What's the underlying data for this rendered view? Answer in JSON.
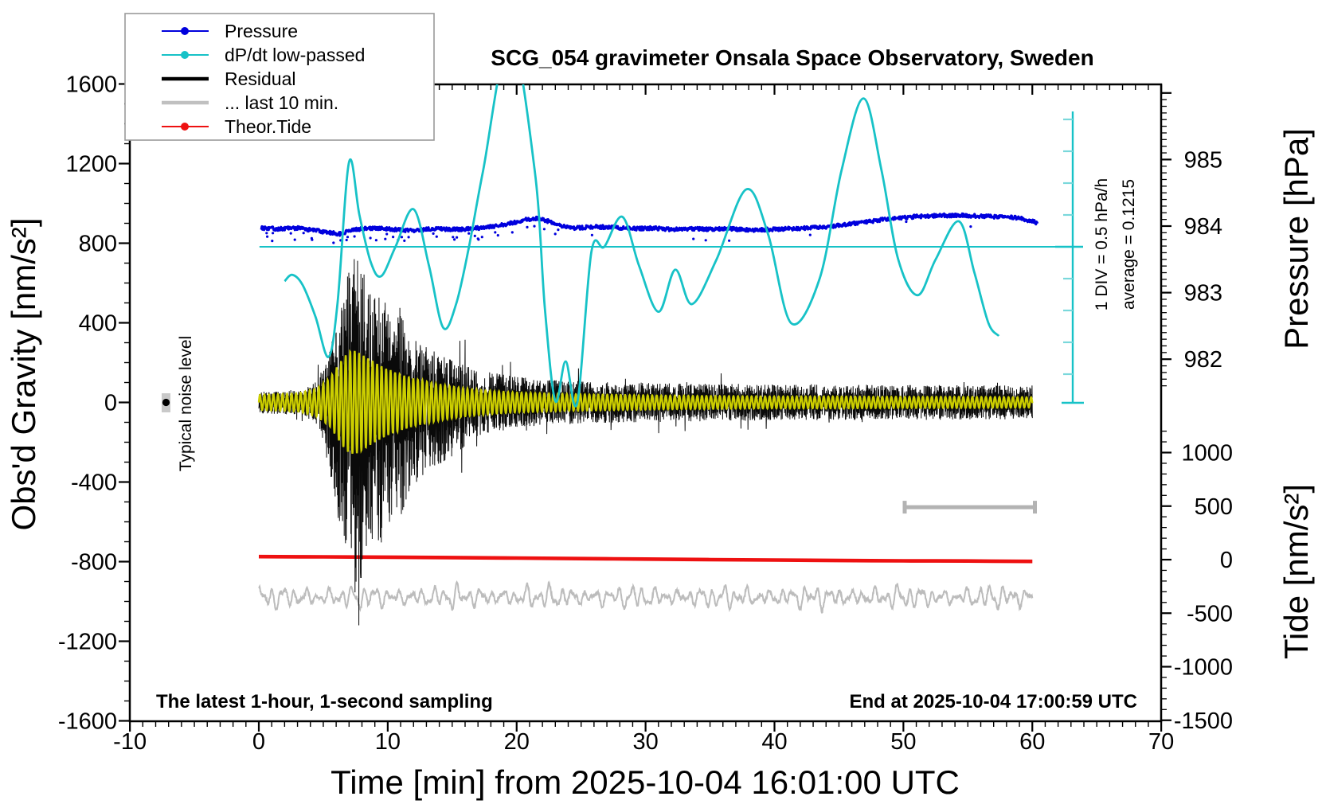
{
  "title": "SCG_054 gravimeter Onsala Space Observatory, Sweden",
  "legend": {
    "items": [
      {
        "label": "Pressure",
        "color": "#0000dd",
        "marker": "dot"
      },
      {
        "label": "dP/dt low-passed",
        "color": "#17c2c7",
        "marker": "dot"
      },
      {
        "label": "Residual",
        "color": "#000000",
        "marker": "none"
      },
      {
        "label": "... last 10 min.",
        "color": "#c0c0c0",
        "marker": "none"
      },
      {
        "label": "Theor.Tide",
        "color": "#ee1111",
        "marker": "dot"
      }
    ]
  },
  "texts": {
    "sampling_note": "The latest 1-hour, 1-second sampling",
    "end_note": "End at 2025-10-04 17:00:59 UTC",
    "div_note": "1 DIV = 0.5 hPa/h",
    "average_note": "average = 0.1215",
    "noise_note": "Typical noise level"
  },
  "axes": {
    "x": {
      "label": "Time [min] from 2025-10-04 16:01:00 UTC",
      "range": [
        -10,
        70
      ],
      "major_ticks": [
        -10,
        0,
        10,
        20,
        30,
        40,
        50,
        60,
        70
      ],
      "minor_step": 1
    },
    "gravity": {
      "label": "Obs'd Gravity [nm/s²]",
      "range": [
        -1600,
        1600
      ],
      "major_ticks": [
        1600,
        1200,
        800,
        400,
        0,
        -400,
        -800,
        -1200,
        -1600
      ],
      "minor_step": 100
    },
    "pressure": {
      "label": "Pressure [hPa]",
      "major_ticks": [
        985,
        984,
        983,
        982
      ],
      "minor_step": 0.1
    },
    "tide": {
      "label": "Tide [nm/s²]",
      "major_ticks": [
        1000,
        500,
        0,
        -500,
        -1000,
        -1500
      ],
      "minor_step": 100
    },
    "dpdt": {
      "div_hpa_per_h": 0.5,
      "average_hpa_per_h": 0.1215
    }
  },
  "chart_data": {
    "type": "line",
    "x_unit": "minutes from 2025-10-04 16:01:00 UTC",
    "series": [
      {
        "name": "Pressure",
        "color": "#0000dd",
        "axis": "pressure_hPa",
        "style": "dense dotted band",
        "points": [
          [
            0.2,
            983.97
          ],
          [
            1.5,
            983.96
          ],
          [
            3,
            983.97
          ],
          [
            4.5,
            983.93
          ],
          [
            5.5,
            983.9
          ],
          [
            6.3,
            983.88
          ],
          [
            7,
            983.93
          ],
          [
            8,
            983.96
          ],
          [
            9,
            983.97
          ],
          [
            10.5,
            983.95
          ],
          [
            12,
            983.93
          ],
          [
            13.5,
            983.96
          ],
          [
            15,
            983.95
          ],
          [
            16.5,
            983.96
          ],
          [
            18,
            983.99
          ],
          [
            19.5,
            984.04
          ],
          [
            20.8,
            984.1
          ],
          [
            21.6,
            984.12
          ],
          [
            22.5,
            984.07
          ],
          [
            23.5,
            984.0
          ],
          [
            24.5,
            983.97
          ],
          [
            26,
            983.99
          ],
          [
            27.5,
            983.98
          ],
          [
            29,
            983.96
          ],
          [
            30.5,
            983.97
          ],
          [
            32,
            983.95
          ],
          [
            33.5,
            983.96
          ],
          [
            35,
            983.95
          ],
          [
            36.5,
            983.96
          ],
          [
            38,
            983.94
          ],
          [
            39.5,
            983.95
          ],
          [
            41,
            983.96
          ],
          [
            42.5,
            983.97
          ],
          [
            44,
            983.99
          ],
          [
            45.5,
            984.02
          ],
          [
            47,
            984.06
          ],
          [
            48.5,
            984.1
          ],
          [
            50,
            984.13
          ],
          [
            51.5,
            984.15
          ],
          [
            53,
            984.16
          ],
          [
            54.5,
            984.16
          ],
          [
            56,
            984.15
          ],
          [
            57.5,
            984.14
          ],
          [
            59,
            984.12
          ],
          [
            60.4,
            984.05
          ]
        ]
      },
      {
        "name": "dP/dt low-passed",
        "color": "#17c2c7",
        "axis": "hPa/h relative to average line (1 DIV = 0.5 hPa/h)",
        "zero_line_at_average": true,
        "points": [
          [
            2.0,
            -0.54
          ],
          [
            2.6,
            -0.44
          ],
          [
            3.4,
            -0.6
          ],
          [
            4.4,
            -1.1
          ],
          [
            5.4,
            -1.73
          ],
          [
            6.1,
            -0.9
          ],
          [
            7.0,
            1.33
          ],
          [
            7.8,
            0.5
          ],
          [
            8.7,
            -0.25
          ],
          [
            9.5,
            -0.46
          ],
          [
            10.6,
            0.0
          ],
          [
            12.0,
            0.59
          ],
          [
            13.2,
            -0.3
          ],
          [
            14.3,
            -1.27
          ],
          [
            15.3,
            -0.9
          ],
          [
            16.3,
            0.0
          ],
          [
            17.4,
            1.2
          ],
          [
            19.5,
            3.3
          ],
          [
            21.4,
            1.2
          ],
          [
            22.2,
            -1.0
          ],
          [
            23.0,
            -2.42
          ],
          [
            23.8,
            -1.8
          ],
          [
            24.7,
            -2.45
          ],
          [
            25.8,
            -0.08
          ],
          [
            26.8,
            0.0
          ],
          [
            28.2,
            0.47
          ],
          [
            29.5,
            -0.3
          ],
          [
            31.0,
            -1.02
          ],
          [
            32.3,
            -0.36
          ],
          [
            33.6,
            -0.9
          ],
          [
            35.5,
            -0.2
          ],
          [
            37.8,
            0.9
          ],
          [
            39.5,
            0.2
          ],
          [
            41.3,
            -1.2
          ],
          [
            43.5,
            -0.5
          ],
          [
            45.2,
            1.2
          ],
          [
            46.9,
            2.33
          ],
          [
            48.3,
            1.2
          ],
          [
            49.6,
            -0.2
          ],
          [
            51.1,
            -0.76
          ],
          [
            52.5,
            -0.2
          ],
          [
            54.3,
            0.4
          ],
          [
            55.5,
            -0.4
          ],
          [
            56.6,
            -1.2
          ],
          [
            57.4,
            -1.4
          ]
        ],
        "note": "peak near min 19.5 is clipped above plot top (> +2.55 hPa/h)"
      },
      {
        "name": "Residual",
        "color": "#000000",
        "axis": "gravity_nm_s2",
        "style": "1 Hz noise band centred at 0",
        "envelope": [
          [
            0,
            55
          ],
          [
            2,
            60
          ],
          [
            3.5,
            65
          ],
          [
            4.5,
            110
          ],
          [
            5,
            180
          ],
          [
            5.5,
            260
          ],
          [
            6,
            400
          ],
          [
            6.5,
            560
          ],
          [
            7,
            690
          ],
          [
            7.5,
            760
          ],
          [
            8,
            700
          ],
          [
            8.5,
            600
          ],
          [
            9,
            540
          ],
          [
            9.5,
            560
          ],
          [
            10,
            480
          ],
          [
            10.5,
            420
          ],
          [
            11,
            440
          ],
          [
            11.5,
            380
          ],
          [
            12,
            350
          ],
          [
            12.5,
            300
          ],
          [
            13,
            280
          ],
          [
            13.5,
            250
          ],
          [
            14,
            240
          ],
          [
            15,
            215
          ],
          [
            16,
            190
          ],
          [
            17,
            170
          ],
          [
            18,
            150
          ],
          [
            19,
            140
          ],
          [
            20,
            130
          ],
          [
            22,
            115
          ],
          [
            24,
            110
          ],
          [
            26,
            105
          ],
          [
            28,
            100
          ],
          [
            30,
            100
          ],
          [
            33,
            95
          ],
          [
            36,
            95
          ],
          [
            40,
            90
          ],
          [
            44,
            90
          ],
          [
            48,
            88
          ],
          [
            52,
            88
          ],
          [
            56,
            85
          ],
          [
            60,
            85
          ]
        ],
        "extremes": {
          "max": [
            7.4,
            720
          ],
          "min": [
            7.8,
            -1120
          ]
        },
        "description": "seismic burst between ~min 5 and ~min 15, decaying coda afterwards"
      },
      {
        "name": "low-passed residual (unlabeled yellow overlay)",
        "color": "#ccce00",
        "axis": "gravity_nm_s2",
        "envelope": [
          [
            0,
            38
          ],
          [
            3,
            45
          ],
          [
            4.5,
            70
          ],
          [
            5.5,
            120
          ],
          [
            6,
            170
          ],
          [
            6.5,
            220
          ],
          [
            7,
            255
          ],
          [
            7.5,
            260
          ],
          [
            8,
            240
          ],
          [
            9,
            200
          ],
          [
            10,
            165
          ],
          [
            11,
            140
          ],
          [
            12,
            120
          ],
          [
            13,
            105
          ],
          [
            14,
            90
          ],
          [
            15,
            80
          ],
          [
            16,
            70
          ],
          [
            18,
            58
          ],
          [
            20,
            50
          ],
          [
            24,
            42
          ],
          [
            28,
            38
          ],
          [
            32,
            34
          ],
          [
            36,
            32
          ],
          [
            40,
            30
          ],
          [
            45,
            30
          ],
          [
            50,
            28
          ],
          [
            55,
            28
          ],
          [
            60,
            26
          ]
        ],
        "period_min": 0.35
      },
      {
        "name": "... last 10 min.",
        "color": "#bcbcbc",
        "axis": "tide_nm_s2",
        "style": "smooth wiggly trace",
        "center": -350,
        "amplitude": 60,
        "span_min": [
          0,
          60
        ]
      },
      {
        "name": "Theor.Tide",
        "color": "#ee1111",
        "axis": "tide_nm_s2",
        "points": [
          [
            0,
            28
          ],
          [
            5,
            26
          ],
          [
            10,
            23
          ],
          [
            15,
            19
          ],
          [
            20,
            15
          ],
          [
            25,
            10
          ],
          [
            30,
            5
          ],
          [
            35,
            0
          ],
          [
            40,
            -4
          ],
          [
            45,
            -8
          ],
          [
            50,
            -11
          ],
          [
            55,
            -13
          ],
          [
            60,
            -16
          ]
        ]
      }
    ],
    "annotations": [
      {
        "name": "typical-noise-level-marker",
        "x_min": -7.2,
        "gravity": 0,
        "label": "Typical noise level"
      },
      {
        "name": "ten-min-scale-bar",
        "from_min": 50.1,
        "to_min": 60.2,
        "tide_level": 490,
        "color": "#b3b3b3"
      },
      {
        "name": "dpdt-average-line",
        "value_hpa_per_h": 0.1215,
        "label": "average = 0.1215"
      }
    ]
  }
}
